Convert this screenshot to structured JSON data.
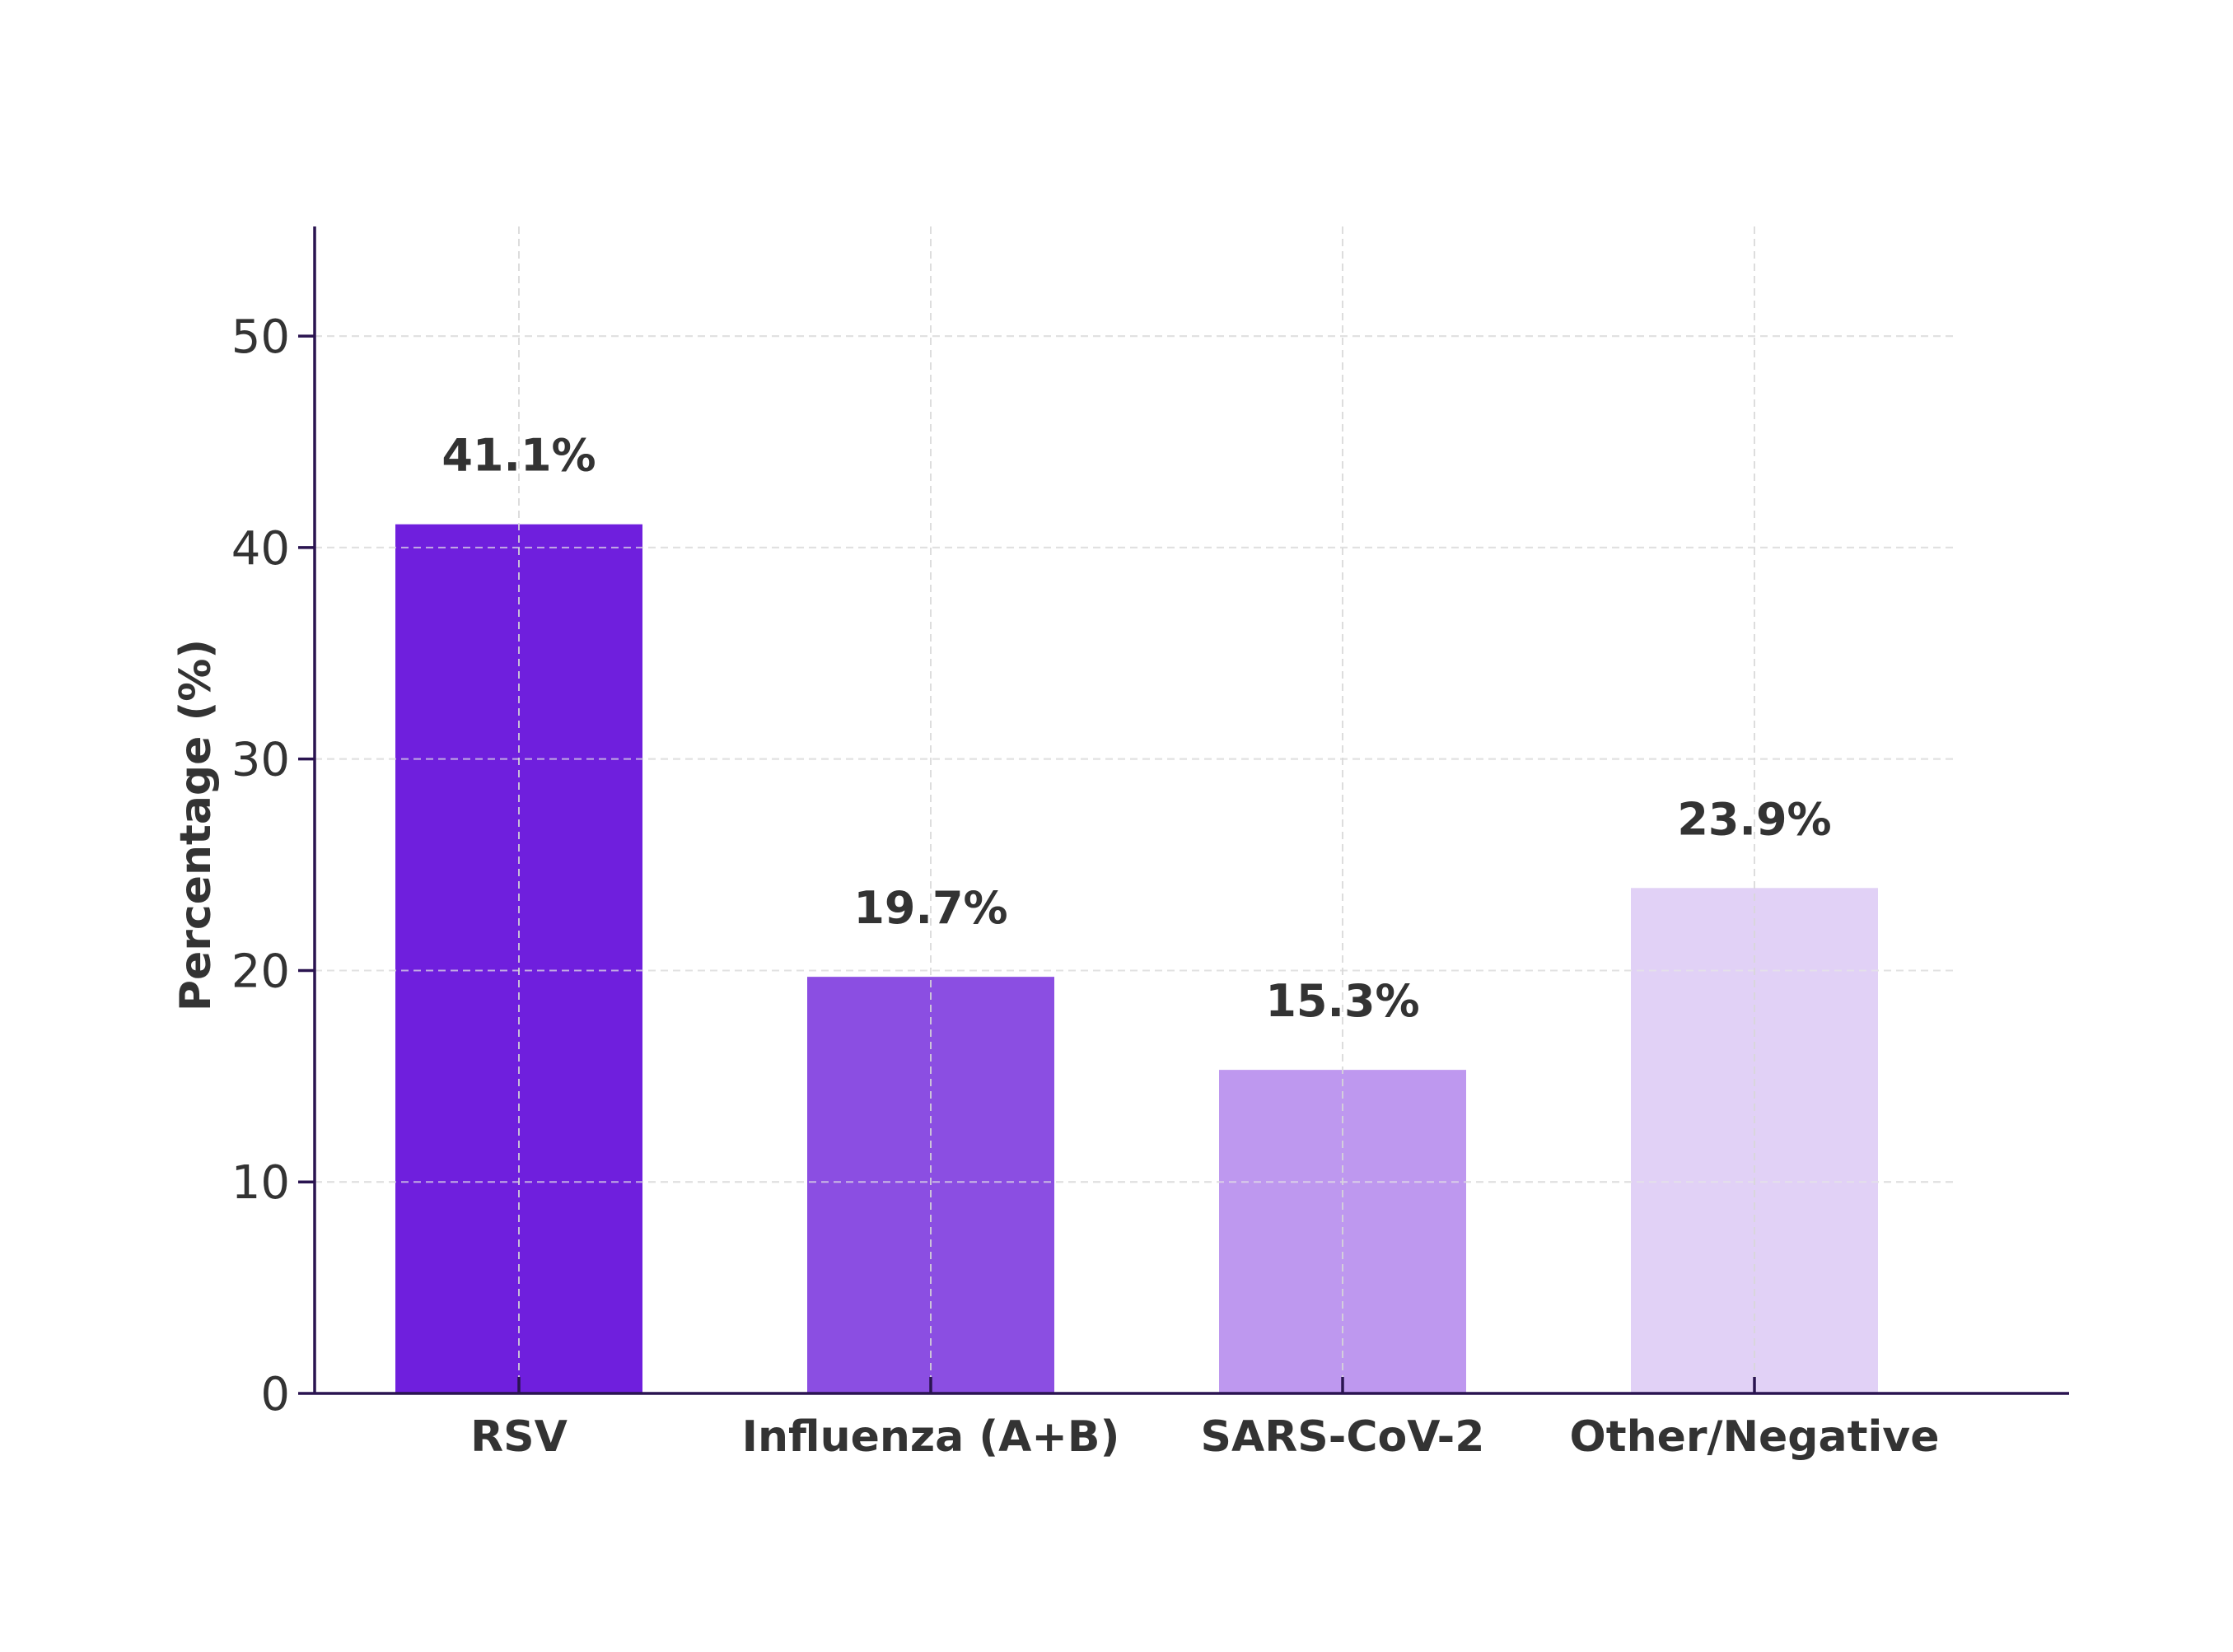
{
  "chart_data": {
    "type": "bar",
    "title": "",
    "xlabel": "",
    "ylabel": "Percentage (%)",
    "categories": [
      "RSV",
      "Influenza (A+B)",
      "SARS-CoV-2",
      "Other/Negative"
    ],
    "values": [
      41.1,
      19.7,
      15.3,
      23.9
    ],
    "value_labels": [
      "41.1%",
      "19.7%",
      "15.3%",
      "23.9%"
    ],
    "colors": [
      "#6f1fdd",
      "#8b4ee2",
      "#be98ef",
      "#e1d1f6"
    ],
    "yticks": [
      0,
      10,
      20,
      30,
      40,
      50
    ],
    "ytick_labels": [
      "0",
      "10",
      "20",
      "30",
      "40",
      "50"
    ],
    "ylim": [
      0,
      55.3
    ],
    "grid": true,
    "legend": "none"
  },
  "style": {
    "axis_color": "#2a1450",
    "text_color": "#333333",
    "grid_color": "#d6d6d6"
  }
}
